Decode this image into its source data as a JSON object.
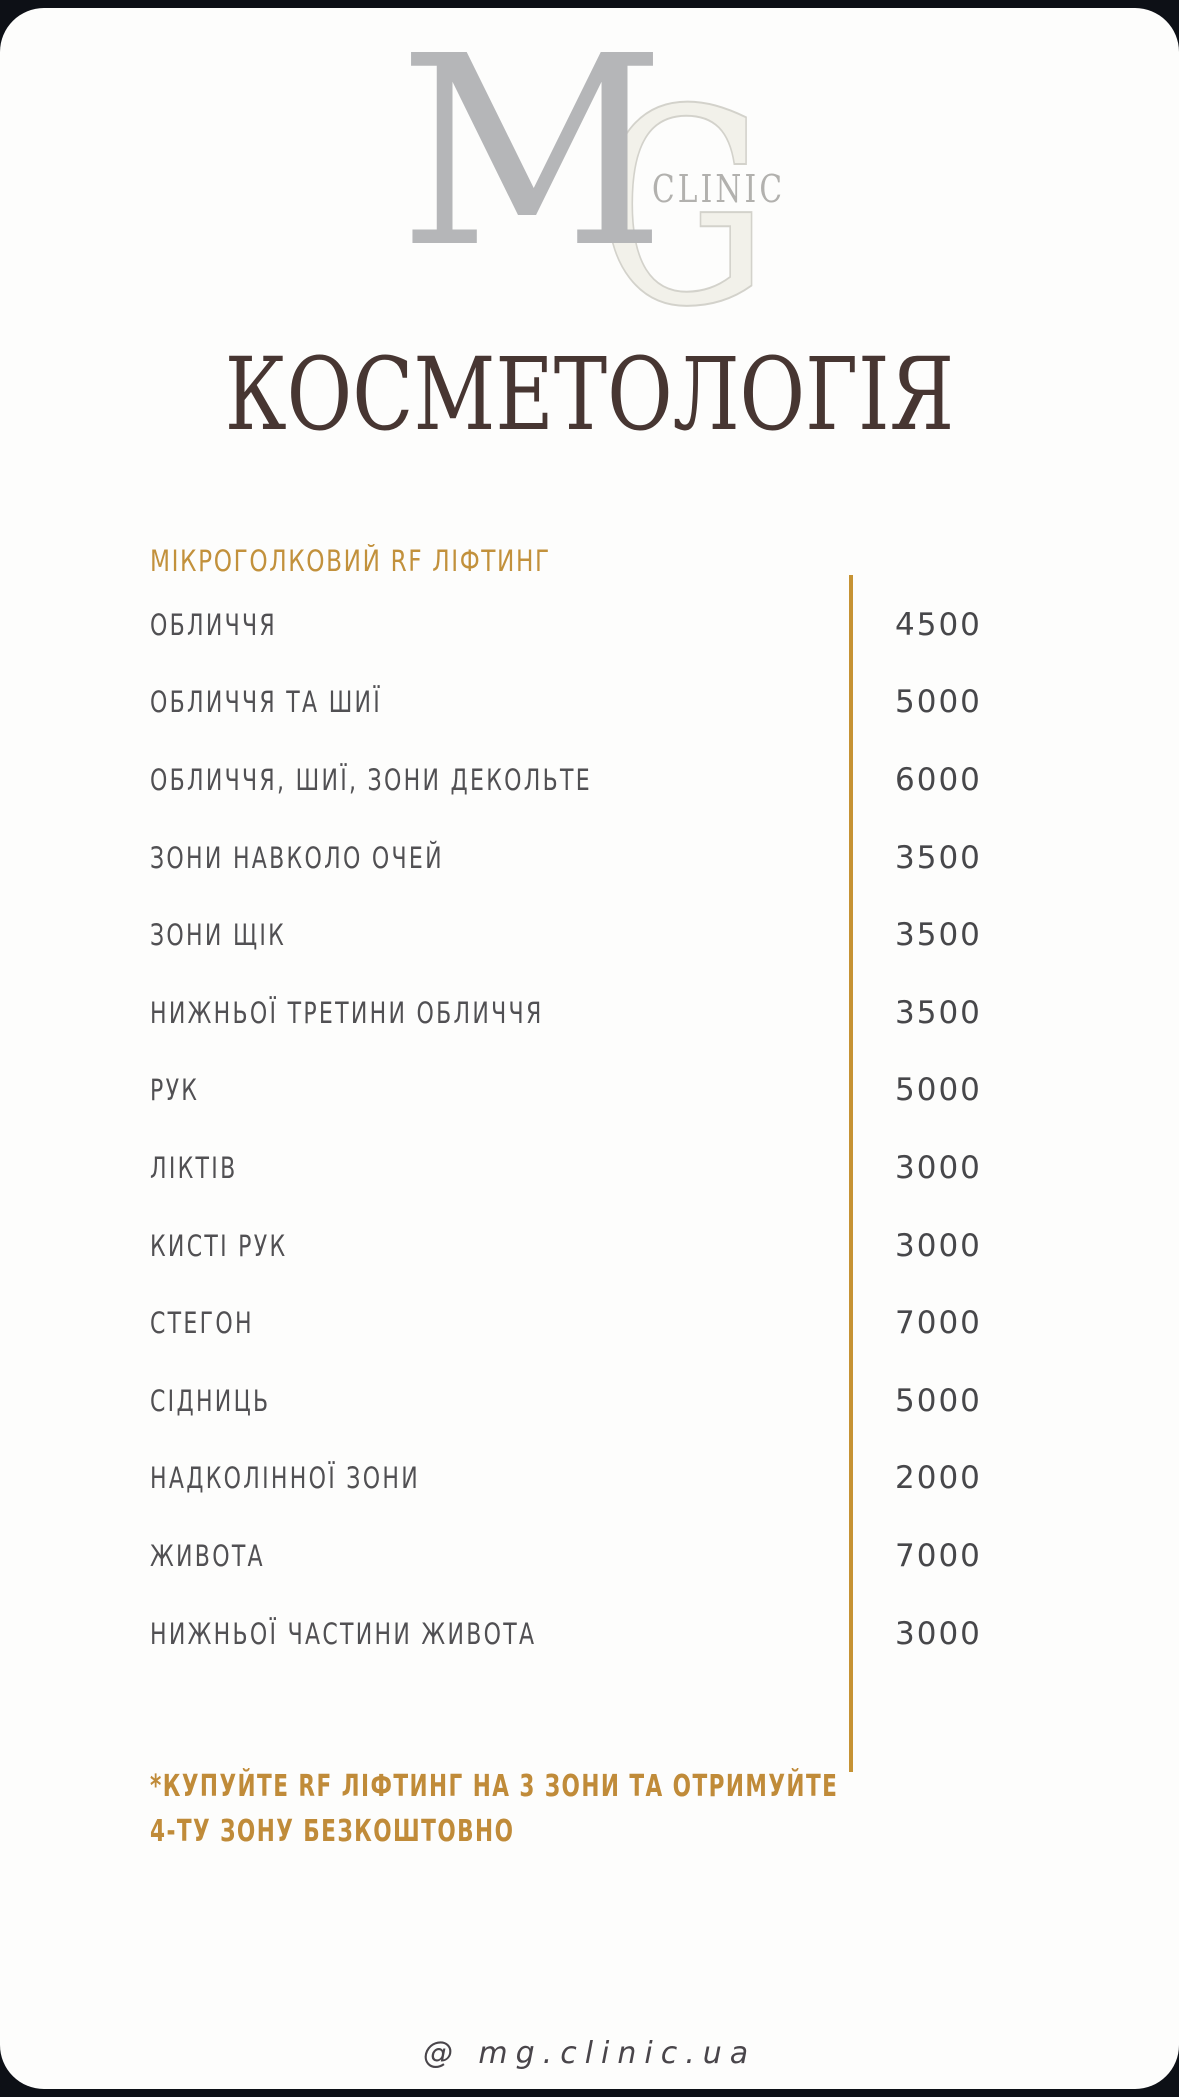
{
  "brand": {
    "monogram_m": "M",
    "monogram_g": "G",
    "clinic_label": "CLINIC"
  },
  "page_title": "КОСМЕТОЛОГІЯ",
  "menu": {
    "section_title": "МІКРОГОЛКОВИЙ RF ЛІФТИНГ",
    "items": [
      {
        "label": "ОБЛИЧЧЯ",
        "price": "4500"
      },
      {
        "label": "ОБЛИЧЧЯ ТА ШИЇ",
        "price": "5000"
      },
      {
        "label": "ОБЛИЧЧЯ, ШИЇ, ЗОНИ ДЕКОЛЬТЕ",
        "price": "6000"
      },
      {
        "label": "ЗОНИ НАВКОЛО ОЧЕЙ",
        "price": "3500"
      },
      {
        "label": "ЗОНИ ЩІК",
        "price": "3500"
      },
      {
        "label": "НИЖНЬОЇ ТРЕТИНИ ОБЛИЧЧЯ",
        "price": "3500"
      },
      {
        "label": "РУК",
        "price": "5000"
      },
      {
        "label": "ЛІКТІВ",
        "price": "3000"
      },
      {
        "label": "КИСТІ РУК",
        "price": "3000"
      },
      {
        "label": "СТЕГОН",
        "price": "7000"
      },
      {
        "label": "СІДНИЦЬ",
        "price": "5000"
      },
      {
        "label": "НАДКОЛІННОЇ ЗОНИ",
        "price": "2000"
      },
      {
        "label": "ЖИВОТА",
        "price": "7000"
      },
      {
        "label": "НИЖНЬОЇ ЧАСТИНИ ЖИВОТА",
        "price": "3000"
      }
    ]
  },
  "promo_note": {
    "line1": "*КУПУЙТЕ RF ЛІФТИНГ НА 3 ЗОНИ ТА ОТРИМУЙТЕ",
    "line2": "4-ТУ ЗОНУ БЕЗКОШТОВНО"
  },
  "footer": {
    "handle": "@ mg.clinic.ua"
  },
  "colors": {
    "background": "#0d1016",
    "card": "#fdfdfc",
    "accent_gold": "#c2913c",
    "divider_gold": "#c69334",
    "title_brown": "#473632",
    "label_gray": "#515053",
    "price_gray": "#47474a",
    "logo_gray": "#b5b6b8",
    "logo_g_fill": "#f2f1ea"
  }
}
